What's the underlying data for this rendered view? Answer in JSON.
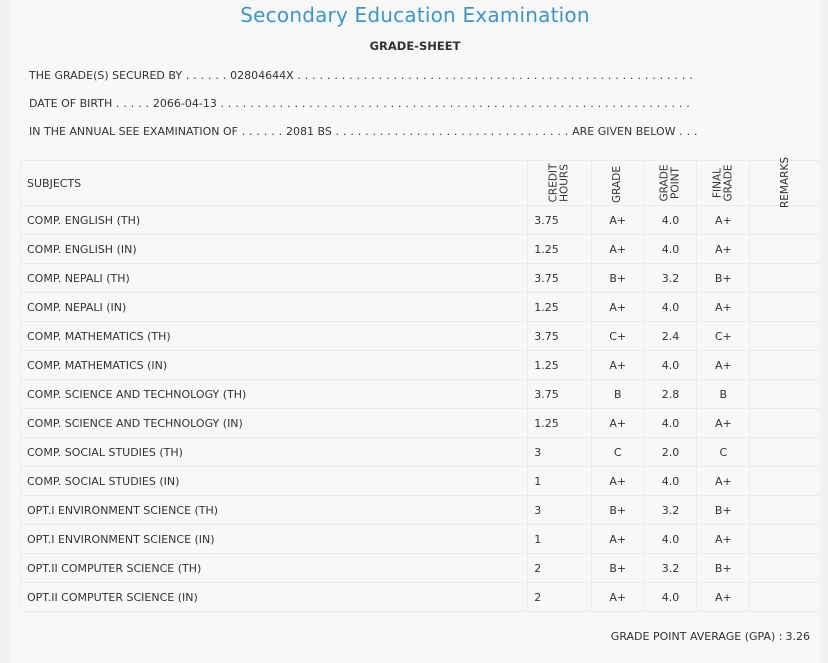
{
  "title": "Secondary Education Examination",
  "subtitle": "GRADE-SHEET",
  "info": {
    "secured_by_label": "THE GRADE(S) SECURED BY",
    "secured_by_value": "02804644X",
    "dob_label": "DATE OF BIRTH",
    "dob_value": "2066-04-13",
    "exam_label": "IN THE ANNUAL SEE EXAMINATION OF",
    "exam_value": "2081 BS",
    "exam_suffix": "ARE GIVEN BELOW"
  },
  "table": {
    "headers": {
      "subjects": "SUBJECTS",
      "credit_hours_1": "CREDIT",
      "credit_hours_2": "HOURS",
      "grade": "GRADE",
      "grade_point_1": "GRADE",
      "grade_point_2": "POINT",
      "final_grade_1": "FINAL",
      "final_grade_2": "GRADE",
      "remarks": "REMARKS"
    },
    "rows": [
      {
        "subject": "COMP. ENGLISH (TH)",
        "credit": "3.75",
        "grade": "A+",
        "point": "4.0",
        "final": "A+",
        "remarks": ""
      },
      {
        "subject": "COMP. ENGLISH (IN)",
        "credit": "1.25",
        "grade": "A+",
        "point": "4.0",
        "final": "A+",
        "remarks": ""
      },
      {
        "subject": "COMP. NEPALI (TH)",
        "credit": "3.75",
        "grade": "B+",
        "point": "3.2",
        "final": "B+",
        "remarks": ""
      },
      {
        "subject": "COMP. NEPALI (IN)",
        "credit": "1.25",
        "grade": "A+",
        "point": "4.0",
        "final": "A+",
        "remarks": ""
      },
      {
        "subject": "COMP. MATHEMATICS (TH)",
        "credit": "3.75",
        "grade": "C+",
        "point": "2.4",
        "final": "C+",
        "remarks": ""
      },
      {
        "subject": "COMP. MATHEMATICS (IN)",
        "credit": "1.25",
        "grade": "A+",
        "point": "4.0",
        "final": "A+",
        "remarks": ""
      },
      {
        "subject": "COMP. SCIENCE AND TECHNOLOGY (TH)",
        "credit": "3.75",
        "grade": "B",
        "point": "2.8",
        "final": "B",
        "remarks": ""
      },
      {
        "subject": "COMP. SCIENCE AND TECHNOLOGY (IN)",
        "credit": "1.25",
        "grade": "A+",
        "point": "4.0",
        "final": "A+",
        "remarks": ""
      },
      {
        "subject": "COMP. SOCIAL STUDIES (TH)",
        "credit": "3",
        "grade": "C",
        "point": "2.0",
        "final": "C",
        "remarks": ""
      },
      {
        "subject": "COMP. SOCIAL STUDIES (IN)",
        "credit": "1",
        "grade": "A+",
        "point": "4.0",
        "final": "A+",
        "remarks": ""
      },
      {
        "subject": "OPT.I ENVIRONMENT SCIENCE (TH)",
        "credit": "3",
        "grade": "B+",
        "point": "3.2",
        "final": "B+",
        "remarks": ""
      },
      {
        "subject": "OPT.I ENVIRONMENT SCIENCE (IN)",
        "credit": "1",
        "grade": "A+",
        "point": "4.0",
        "final": "A+",
        "remarks": ""
      },
      {
        "subject": "OPT.II COMPUTER SCIENCE (TH)",
        "credit": "2",
        "grade": "B+",
        "point": "3.2",
        "final": "B+",
        "remarks": ""
      },
      {
        "subject": "OPT.II COMPUTER SCIENCE (IN)",
        "credit": "2",
        "grade": "A+",
        "point": "4.0",
        "final": "A+",
        "remarks": ""
      }
    ]
  },
  "gpa": {
    "label": "GRADE POINT AVERAGE (GPA) :",
    "value": "3.26"
  },
  "colors": {
    "title": "#3b95cf",
    "text": "#333333",
    "background": "#f8f8f8"
  }
}
